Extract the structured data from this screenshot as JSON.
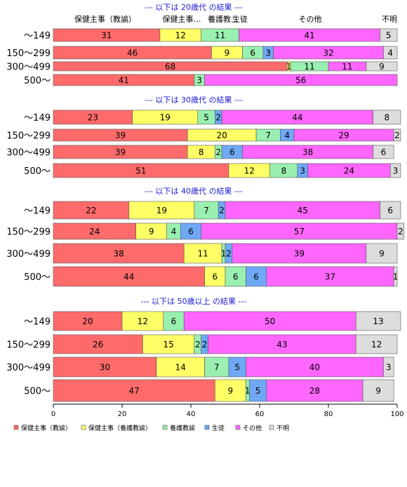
{
  "chart_data": {
    "type": "bar",
    "orientation": "horizontal",
    "stacked": "percent",
    "xlim": [
      0,
      100
    ],
    "xticks": [
      "0",
      "20",
      "40",
      "60",
      "80",
      "100"
    ],
    "grid": false,
    "legend_position": "bottom-left",
    "column_headers": [
      "保健主事（教諭）",
      "保健主事…",
      "養護教…",
      "生徒",
      "その他",
      "不明"
    ],
    "series": [
      {
        "name": "保健主事（教諭）",
        "color": "#ff6b6b"
      },
      {
        "name": "保健主事（養護教諭）",
        "color": "#ffff66"
      },
      {
        "name": "養護教諭",
        "color": "#99f0b0"
      },
      {
        "name": "生徒",
        "color": "#6fa8f5"
      },
      {
        "name": "その他",
        "color": "#ff66ff"
      },
      {
        "name": "不明",
        "color": "#dddddd"
      }
    ],
    "panels": [
      {
        "title": "--- 以下は 20歳代 の結果 ---",
        "categories": [
          "～149",
          "150～299",
          "300～499",
          "500～"
        ],
        "rows": [
          [
            31,
            12,
            11,
            0,
            41,
            5
          ],
          [
            46,
            9,
            6,
            3,
            32,
            4
          ],
          [
            68,
            1,
            11,
            0,
            11,
            9
          ],
          [
            41,
            0,
            3,
            0,
            56,
            0
          ]
        ]
      },
      {
        "title": "--- 以下は 30歳代 の結果 ---",
        "categories": [
          "～149",
          "150～299",
          "300～499",
          "500～"
        ],
        "rows": [
          [
            23,
            19,
            5,
            2,
            44,
            8
          ],
          [
            39,
            20,
            7,
            4,
            29,
            2
          ],
          [
            39,
            8,
            2,
            6,
            38,
            6
          ],
          [
            51,
            12,
            8,
            3,
            24,
            3
          ]
        ]
      },
      {
        "title": "--- 以下は 40歳代 の結果 ---",
        "categories": [
          "～149",
          "150～299",
          "300～499",
          "500～"
        ],
        "rows": [
          [
            22,
            19,
            7,
            2,
            45,
            6
          ],
          [
            24,
            9,
            4,
            6,
            57,
            2
          ],
          [
            38,
            11,
            1,
            2,
            39,
            9
          ],
          [
            44,
            6,
            6,
            6,
            37,
            1
          ]
        ]
      },
      {
        "title": "--- 以下は 50歳以上 の結果 ---",
        "categories": [
          "～149",
          "150～299",
          "300～499",
          "500～"
        ],
        "rows": [
          [
            20,
            12,
            6,
            0,
            50,
            13
          ],
          [
            26,
            15,
            2,
            2,
            43,
            12
          ],
          [
            30,
            14,
            7,
            5,
            40,
            3
          ],
          [
            47,
            9,
            1,
            5,
            28,
            9
          ]
        ]
      }
    ]
  }
}
